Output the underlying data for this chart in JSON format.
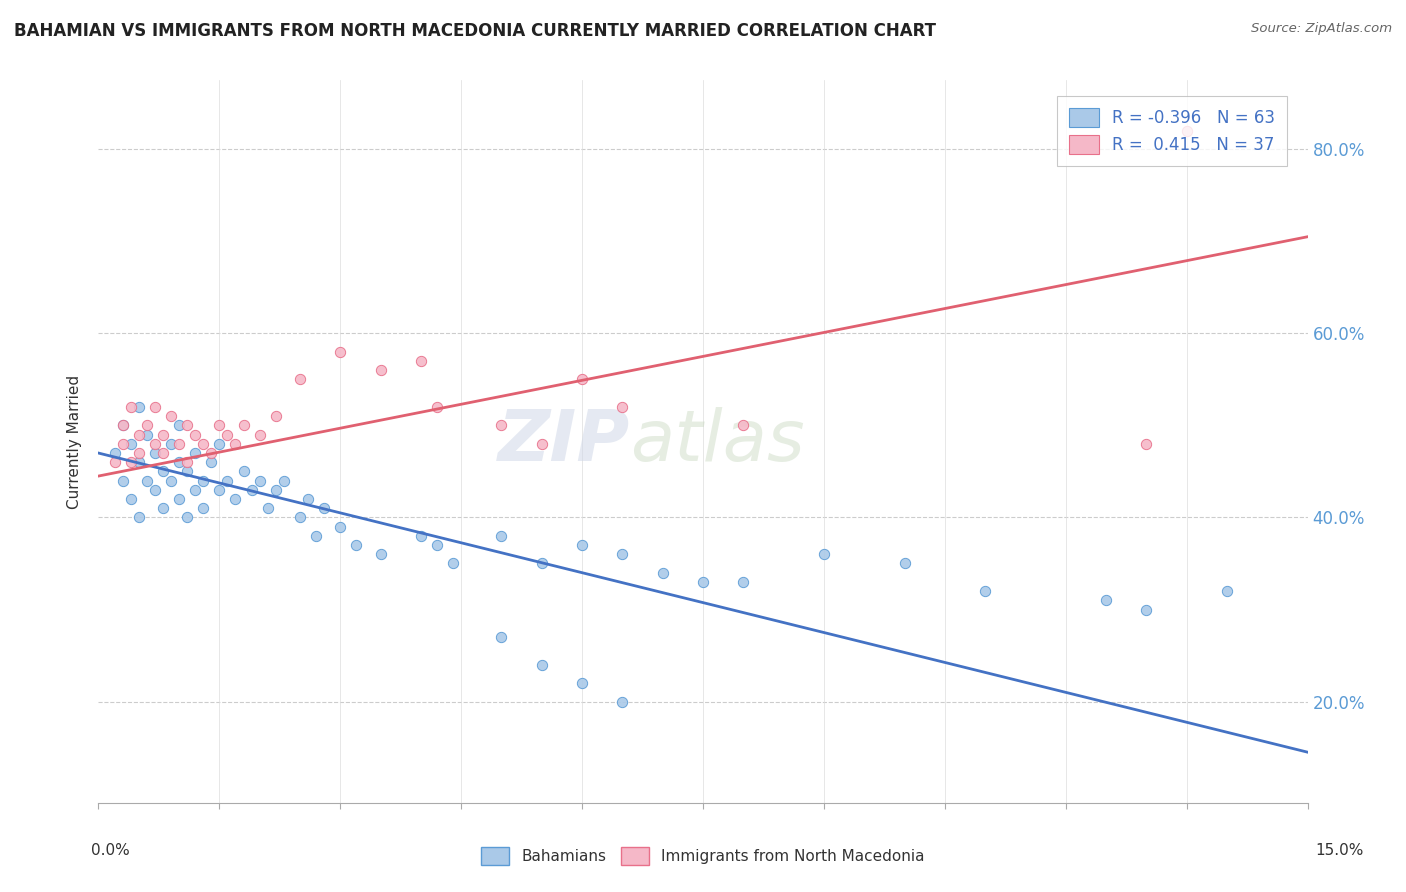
{
  "title": "BAHAMIAN VS IMMIGRANTS FROM NORTH MACEDONIA CURRENTLY MARRIED CORRELATION CHART",
  "source": "Source: ZipAtlas.com",
  "ylabel": "Currently Married",
  "yaxis_labels": [
    "20.0%",
    "40.0%",
    "60.0%",
    "80.0%"
  ],
  "yaxis_values": [
    0.2,
    0.4,
    0.6,
    0.8
  ],
  "xlim": [
    0.0,
    0.15
  ],
  "ylim": [
    0.09,
    0.875
  ],
  "blue_R": -0.396,
  "blue_N": 63,
  "pink_R": 0.415,
  "pink_N": 37,
  "blue_color": "#aac9e8",
  "blue_edge_color": "#5b9bd5",
  "pink_color": "#f5b8c8",
  "pink_edge_color": "#e8708a",
  "blue_label": "Bahamians",
  "pink_label": "Immigrants from North Macedonia",
  "blue_line_color": "#4472c4",
  "pink_line_color": "#e06070",
  "watermark_zip": "ZIP",
  "watermark_atlas": "atlas",
  "blue_trend_x0": 0.0,
  "blue_trend_y0": 0.47,
  "blue_trend_x1": 0.15,
  "blue_trend_y1": 0.145,
  "pink_trend_x0": 0.0,
  "pink_trend_y0": 0.445,
  "pink_trend_x1": 0.15,
  "pink_trend_y1": 0.705,
  "blue_x": [
    0.002,
    0.003,
    0.003,
    0.004,
    0.004,
    0.005,
    0.005,
    0.005,
    0.006,
    0.006,
    0.007,
    0.007,
    0.008,
    0.008,
    0.009,
    0.009,
    0.01,
    0.01,
    0.01,
    0.011,
    0.011,
    0.012,
    0.012,
    0.013,
    0.013,
    0.014,
    0.015,
    0.015,
    0.016,
    0.017,
    0.018,
    0.019,
    0.02,
    0.021,
    0.022,
    0.023,
    0.025,
    0.026,
    0.027,
    0.028,
    0.03,
    0.032,
    0.035,
    0.04,
    0.042,
    0.044,
    0.05,
    0.055,
    0.06,
    0.065,
    0.07,
    0.075,
    0.09,
    0.1,
    0.11,
    0.125,
    0.13,
    0.14,
    0.05,
    0.055,
    0.06,
    0.065,
    0.08
  ],
  "blue_y": [
    0.47,
    0.5,
    0.44,
    0.48,
    0.42,
    0.46,
    0.52,
    0.4,
    0.44,
    0.49,
    0.47,
    0.43,
    0.45,
    0.41,
    0.48,
    0.44,
    0.46,
    0.42,
    0.5,
    0.45,
    0.4,
    0.43,
    0.47,
    0.44,
    0.41,
    0.46,
    0.43,
    0.48,
    0.44,
    0.42,
    0.45,
    0.43,
    0.44,
    0.41,
    0.43,
    0.44,
    0.4,
    0.42,
    0.38,
    0.41,
    0.39,
    0.37,
    0.36,
    0.38,
    0.37,
    0.35,
    0.38,
    0.35,
    0.37,
    0.36,
    0.34,
    0.33,
    0.36,
    0.35,
    0.32,
    0.31,
    0.3,
    0.32,
    0.27,
    0.24,
    0.22,
    0.2,
    0.33
  ],
  "pink_x": [
    0.002,
    0.003,
    0.003,
    0.004,
    0.004,
    0.005,
    0.005,
    0.006,
    0.007,
    0.007,
    0.008,
    0.008,
    0.009,
    0.01,
    0.011,
    0.011,
    0.012,
    0.013,
    0.014,
    0.015,
    0.016,
    0.017,
    0.018,
    0.02,
    0.022,
    0.025,
    0.03,
    0.035,
    0.04,
    0.042,
    0.05,
    0.055,
    0.06,
    0.065,
    0.08,
    0.13,
    0.135
  ],
  "pink_y": [
    0.46,
    0.5,
    0.48,
    0.52,
    0.46,
    0.49,
    0.47,
    0.5,
    0.48,
    0.52,
    0.47,
    0.49,
    0.51,
    0.48,
    0.5,
    0.46,
    0.49,
    0.48,
    0.47,
    0.5,
    0.49,
    0.48,
    0.5,
    0.49,
    0.51,
    0.55,
    0.58,
    0.56,
    0.57,
    0.52,
    0.5,
    0.48,
    0.55,
    0.52,
    0.5,
    0.48,
    0.82
  ]
}
